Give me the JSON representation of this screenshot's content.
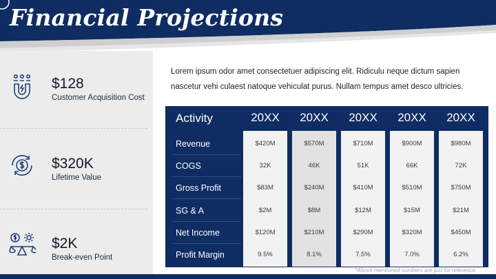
{
  "header": {
    "title": "Financial Projections"
  },
  "kpis": [
    {
      "value": "$128",
      "label": "Customer Acquisition Cost",
      "icon": "magnet-users-icon"
    },
    {
      "value": "$320K",
      "label": "Lifetime Value",
      "icon": "dollar-cycle-icon"
    },
    {
      "value": "$2K",
      "label": "Break-even Point",
      "icon": "balance-scale-icon"
    }
  ],
  "intro": "Lorem ipsum odor amet consectetuer adipiscing elit. Ridiculu neque dictum sapien nascetur vehi culaest natoque vehiculat purus. Nullam tempus amet desco ultricies.",
  "table": {
    "header_label": "Activity",
    "rows": [
      "Revenue",
      "COGS",
      "Gross Profit",
      "SG & A",
      "Net Income",
      "Profit Margin"
    ],
    "columns": [
      {
        "year": "20XX",
        "values": [
          "$420M",
          "32K",
          "$83M",
          "$2M",
          "$120M",
          "9.5%"
        ]
      },
      {
        "year": "20XX",
        "values": [
          "$570M",
          "46K",
          "$240M",
          "$8M",
          "$210M",
          "8.1%"
        ]
      },
      {
        "year": "20XX",
        "values": [
          "$710M",
          "51K",
          "$410M",
          "$12M",
          "$290M",
          "7.5%"
        ]
      },
      {
        "year": "20XX",
        "values": [
          "$900M",
          "66K",
          "$510M",
          "$15M",
          "$320M",
          "7.0%"
        ]
      },
      {
        "year": "20XX",
        "values": [
          "$980M",
          "72K",
          "$750M",
          "$21M",
          "$450M",
          "6.2%"
        ]
      }
    ]
  },
  "footnote": "*Above mentioned numbers are just for reference.",
  "colors": {
    "navy": "#0f2d63",
    "panel": "#ececec"
  }
}
